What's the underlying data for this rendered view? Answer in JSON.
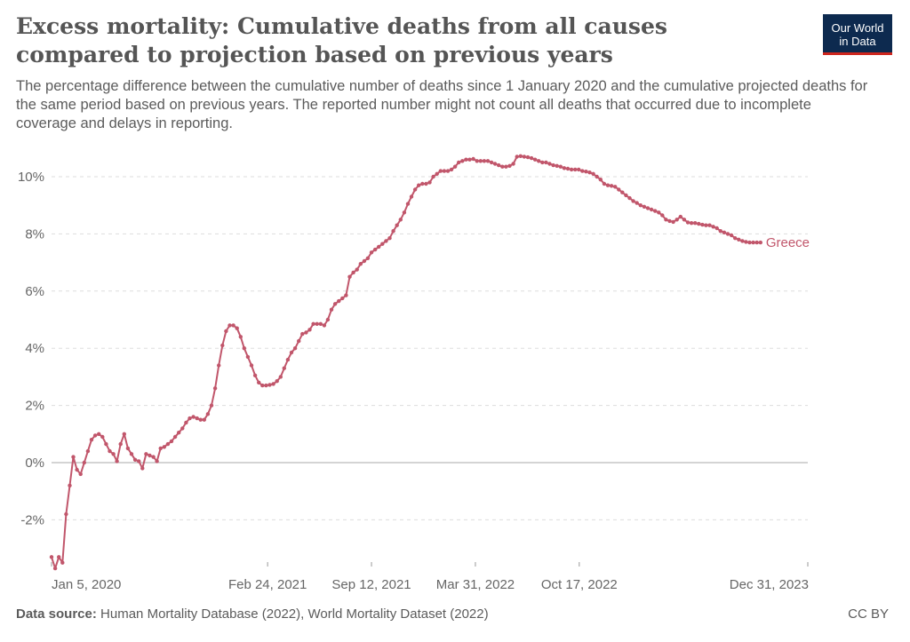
{
  "header": {
    "title": "Excess mortality: Cumulative deaths from all causes compared to projection based on previous years",
    "subtitle": "The percentage difference between the cumulative number of deaths since 1 January 2020 and the cumulative projected deaths for the same period based on previous years. The reported number might not count all deaths that occurred due to incomplete coverage and delays in reporting.",
    "logo_line1": "Our World",
    "logo_line2": "in Data"
  },
  "footer": {
    "source_label": "Data source:",
    "source_text": "Human Mortality Database (2022), World Mortality Dataset (2022)",
    "license": "CC BY"
  },
  "colors": {
    "series": "#c1566b",
    "grid": "#dddddd",
    "zero_line": "#aaaaaa",
    "axis_text": "#666666",
    "logo_bg": "#0d2a4f",
    "logo_accent": "#ce261e"
  },
  "chart_data": {
    "type": "line",
    "title": "Excess mortality: Cumulative deaths from all causes compared to projection based on previous years",
    "xlabel": "",
    "ylabel": "",
    "y_unit": "%",
    "ylim": [
      -3.5,
      11
    ],
    "y_ticks": [
      -2,
      0,
      2,
      4,
      6,
      8,
      10
    ],
    "y_tick_labels": [
      "-2%",
      "0%",
      "2%",
      "4%",
      "6%",
      "8%",
      "10%"
    ],
    "x_range": [
      "2020-01-05",
      "2023-12-31"
    ],
    "x_ticks": [
      "2020-01-05",
      "2021-02-24",
      "2021-09-12",
      "2022-03-31",
      "2022-10-17",
      "2023-12-31"
    ],
    "x_tick_labels": [
      "Jan 5, 2020",
      "Feb 24, 2021",
      "Sep 12, 2021",
      "Mar 31, 2022",
      "Oct 17, 2022",
      "Dec 31, 2023"
    ],
    "grid": true,
    "legend": "inline-right",
    "series": [
      {
        "name": "Greece",
        "points": [
          [
            "2020-01-05",
            -3.3
          ],
          [
            "2020-01-12",
            -3.7
          ],
          [
            "2020-01-19",
            -3.3
          ],
          [
            "2020-01-26",
            -3.5
          ],
          [
            "2020-02-02",
            -1.8
          ],
          [
            "2020-02-09",
            -0.8
          ],
          [
            "2020-02-16",
            0.2
          ],
          [
            "2020-02-23",
            -0.25
          ],
          [
            "2020-03-01",
            -0.4
          ],
          [
            "2020-03-08",
            0.0
          ],
          [
            "2020-03-15",
            0.4
          ],
          [
            "2020-03-22",
            0.8
          ],
          [
            "2020-03-29",
            0.95
          ],
          [
            "2020-04-05",
            1.0
          ],
          [
            "2020-04-12",
            0.9
          ],
          [
            "2020-04-19",
            0.65
          ],
          [
            "2020-04-26",
            0.4
          ],
          [
            "2020-05-03",
            0.3
          ],
          [
            "2020-05-10",
            0.05
          ],
          [
            "2020-05-17",
            0.65
          ],
          [
            "2020-05-24",
            1.0
          ],
          [
            "2020-05-31",
            0.5
          ],
          [
            "2020-06-07",
            0.3
          ],
          [
            "2020-06-14",
            0.1
          ],
          [
            "2020-06-21",
            0.05
          ],
          [
            "2020-06-28",
            -0.2
          ],
          [
            "2020-07-05",
            0.3
          ],
          [
            "2020-07-12",
            0.25
          ],
          [
            "2020-07-19",
            0.2
          ],
          [
            "2020-07-26",
            0.05
          ],
          [
            "2020-08-02",
            0.5
          ],
          [
            "2020-08-09",
            0.55
          ],
          [
            "2020-08-16",
            0.65
          ],
          [
            "2020-08-23",
            0.75
          ],
          [
            "2020-08-30",
            0.9
          ],
          [
            "2020-09-06",
            1.05
          ],
          [
            "2020-09-13",
            1.2
          ],
          [
            "2020-09-20",
            1.4
          ],
          [
            "2020-09-27",
            1.55
          ],
          [
            "2020-10-04",
            1.6
          ],
          [
            "2020-10-11",
            1.55
          ],
          [
            "2020-10-18",
            1.5
          ],
          [
            "2020-10-25",
            1.5
          ],
          [
            "2020-11-01",
            1.7
          ],
          [
            "2020-11-08",
            2.0
          ],
          [
            "2020-11-15",
            2.6
          ],
          [
            "2020-11-22",
            3.4
          ],
          [
            "2020-11-29",
            4.1
          ],
          [
            "2020-12-06",
            4.6
          ],
          [
            "2020-12-13",
            4.8
          ],
          [
            "2020-12-20",
            4.8
          ],
          [
            "2020-12-27",
            4.7
          ],
          [
            "2021-01-03",
            4.4
          ],
          [
            "2021-01-10",
            4.0
          ],
          [
            "2021-01-17",
            3.7
          ],
          [
            "2021-01-24",
            3.4
          ],
          [
            "2021-01-31",
            3.05
          ],
          [
            "2021-02-07",
            2.8
          ],
          [
            "2021-02-14",
            2.7
          ],
          [
            "2021-02-21",
            2.7
          ],
          [
            "2021-02-28",
            2.72
          ],
          [
            "2021-03-07",
            2.75
          ],
          [
            "2021-03-14",
            2.85
          ],
          [
            "2021-03-21",
            3.0
          ],
          [
            "2021-03-28",
            3.3
          ],
          [
            "2021-04-04",
            3.6
          ],
          [
            "2021-04-11",
            3.85
          ],
          [
            "2021-04-18",
            4.0
          ],
          [
            "2021-04-25",
            4.25
          ],
          [
            "2021-05-02",
            4.5
          ],
          [
            "2021-05-09",
            4.55
          ],
          [
            "2021-05-16",
            4.65
          ],
          [
            "2021-05-23",
            4.85
          ],
          [
            "2021-05-30",
            4.85
          ],
          [
            "2021-06-06",
            4.85
          ],
          [
            "2021-06-13",
            4.8
          ],
          [
            "2021-06-20",
            5.0
          ],
          [
            "2021-06-27",
            5.35
          ],
          [
            "2021-07-04",
            5.55
          ],
          [
            "2021-07-11",
            5.65
          ],
          [
            "2021-07-18",
            5.75
          ],
          [
            "2021-07-25",
            5.85
          ],
          [
            "2021-08-01",
            6.5
          ],
          [
            "2021-08-08",
            6.65
          ],
          [
            "2021-08-15",
            6.75
          ],
          [
            "2021-08-22",
            6.95
          ],
          [
            "2021-08-29",
            7.05
          ],
          [
            "2021-09-05",
            7.15
          ],
          [
            "2021-09-12",
            7.35
          ],
          [
            "2021-09-19",
            7.45
          ],
          [
            "2021-09-26",
            7.55
          ],
          [
            "2021-10-03",
            7.65
          ],
          [
            "2021-10-10",
            7.75
          ],
          [
            "2021-10-17",
            7.85
          ],
          [
            "2021-10-24",
            8.1
          ],
          [
            "2021-10-31",
            8.3
          ],
          [
            "2021-11-07",
            8.5
          ],
          [
            "2021-11-14",
            8.75
          ],
          [
            "2021-11-21",
            9.05
          ],
          [
            "2021-11-28",
            9.3
          ],
          [
            "2021-12-05",
            9.55
          ],
          [
            "2021-12-12",
            9.7
          ],
          [
            "2021-12-19",
            9.75
          ],
          [
            "2021-12-26",
            9.75
          ],
          [
            "2022-01-02",
            9.8
          ],
          [
            "2022-01-09",
            10.0
          ],
          [
            "2022-01-16",
            10.1
          ],
          [
            "2022-01-23",
            10.2
          ],
          [
            "2022-01-30",
            10.2
          ],
          [
            "2022-02-06",
            10.2
          ],
          [
            "2022-02-13",
            10.25
          ],
          [
            "2022-02-20",
            10.35
          ],
          [
            "2022-02-27",
            10.5
          ],
          [
            "2022-03-06",
            10.55
          ],
          [
            "2022-03-13",
            10.6
          ],
          [
            "2022-03-20",
            10.6
          ],
          [
            "2022-03-27",
            10.62
          ],
          [
            "2022-04-03",
            10.55
          ],
          [
            "2022-04-10",
            10.55
          ],
          [
            "2022-04-17",
            10.55
          ],
          [
            "2022-04-24",
            10.55
          ],
          [
            "2022-05-01",
            10.5
          ],
          [
            "2022-05-08",
            10.45
          ],
          [
            "2022-05-15",
            10.4
          ],
          [
            "2022-05-22",
            10.35
          ],
          [
            "2022-05-29",
            10.35
          ],
          [
            "2022-06-05",
            10.38
          ],
          [
            "2022-06-12",
            10.45
          ],
          [
            "2022-06-19",
            10.7
          ],
          [
            "2022-06-26",
            10.72
          ],
          [
            "2022-07-03",
            10.7
          ],
          [
            "2022-07-10",
            10.68
          ],
          [
            "2022-07-17",
            10.65
          ],
          [
            "2022-07-24",
            10.6
          ],
          [
            "2022-07-31",
            10.55
          ],
          [
            "2022-08-07",
            10.5
          ],
          [
            "2022-08-14",
            10.5
          ],
          [
            "2022-08-21",
            10.45
          ],
          [
            "2022-08-28",
            10.4
          ],
          [
            "2022-09-04",
            10.38
          ],
          [
            "2022-09-11",
            10.35
          ],
          [
            "2022-09-18",
            10.3
          ],
          [
            "2022-09-25",
            10.28
          ],
          [
            "2022-10-02",
            10.25
          ],
          [
            "2022-10-09",
            10.25
          ],
          [
            "2022-10-16",
            10.25
          ],
          [
            "2022-10-23",
            10.2
          ],
          [
            "2022-10-30",
            10.18
          ],
          [
            "2022-11-06",
            10.15
          ],
          [
            "2022-11-13",
            10.1
          ],
          [
            "2022-11-20",
            10.0
          ],
          [
            "2022-11-27",
            9.9
          ],
          [
            "2022-12-04",
            9.75
          ],
          [
            "2022-12-11",
            9.7
          ],
          [
            "2022-12-18",
            9.68
          ],
          [
            "2022-12-25",
            9.65
          ],
          [
            "2023-01-01",
            9.55
          ],
          [
            "2023-01-08",
            9.45
          ],
          [
            "2023-01-15",
            9.35
          ],
          [
            "2023-01-22",
            9.25
          ],
          [
            "2023-01-29",
            9.15
          ],
          [
            "2023-02-05",
            9.08
          ],
          [
            "2023-02-12",
            9.0
          ],
          [
            "2023-02-19",
            8.95
          ],
          [
            "2023-02-26",
            8.9
          ],
          [
            "2023-03-05",
            8.85
          ],
          [
            "2023-03-12",
            8.8
          ],
          [
            "2023-03-19",
            8.75
          ],
          [
            "2023-03-26",
            8.65
          ],
          [
            "2023-04-02",
            8.5
          ],
          [
            "2023-04-09",
            8.45
          ],
          [
            "2023-04-16",
            8.42
          ],
          [
            "2023-04-23",
            8.5
          ],
          [
            "2023-04-30",
            8.6
          ],
          [
            "2023-05-07",
            8.5
          ],
          [
            "2023-05-14",
            8.4
          ],
          [
            "2023-05-21",
            8.38
          ],
          [
            "2023-05-28",
            8.38
          ],
          [
            "2023-06-04",
            8.35
          ],
          [
            "2023-06-11",
            8.32
          ],
          [
            "2023-06-18",
            8.3
          ],
          [
            "2023-06-25",
            8.3
          ],
          [
            "2023-07-02",
            8.25
          ],
          [
            "2023-07-09",
            8.2
          ],
          [
            "2023-07-16",
            8.1
          ],
          [
            "2023-07-23",
            8.05
          ],
          [
            "2023-07-30",
            8.0
          ],
          [
            "2023-08-06",
            7.95
          ],
          [
            "2023-08-13",
            7.85
          ],
          [
            "2023-08-20",
            7.8
          ],
          [
            "2023-08-27",
            7.75
          ],
          [
            "2023-09-03",
            7.72
          ],
          [
            "2023-09-10",
            7.7
          ],
          [
            "2023-09-17",
            7.7
          ],
          [
            "2023-09-24",
            7.7
          ],
          [
            "2023-10-01",
            7.7
          ]
        ]
      }
    ]
  }
}
